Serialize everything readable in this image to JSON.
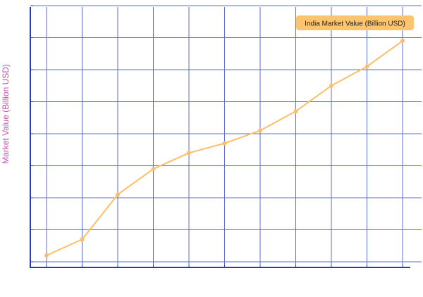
{
  "colors": {
    "background": "#ffffff",
    "grid": "#5b6bd3",
    "axis": "#2a3ab0",
    "line": "#fdbe68",
    "ylabel": "#c64fb2",
    "legend_bg": "#fdc46f",
    "legend_text": "#1f1f1f"
  },
  "chart_data": {
    "type": "line",
    "title": "",
    "xlabel": "",
    "ylabel": "Market Value (Billion USD)",
    "grid": true,
    "tick_labels_shown": false,
    "legend_position": "top-right",
    "ylim": [
      0,
      8
    ],
    "series": [
      {
        "name": "India Market Value (Billion USD)",
        "x": [
          0,
          1,
          2,
          3,
          4,
          5,
          6,
          7,
          8,
          9,
          10
        ],
        "values": [
          0.2,
          0.7,
          2.1,
          2.9,
          3.4,
          3.7,
          4.1,
          4.7,
          5.5,
          6.1,
          6.9
        ]
      }
    ]
  }
}
